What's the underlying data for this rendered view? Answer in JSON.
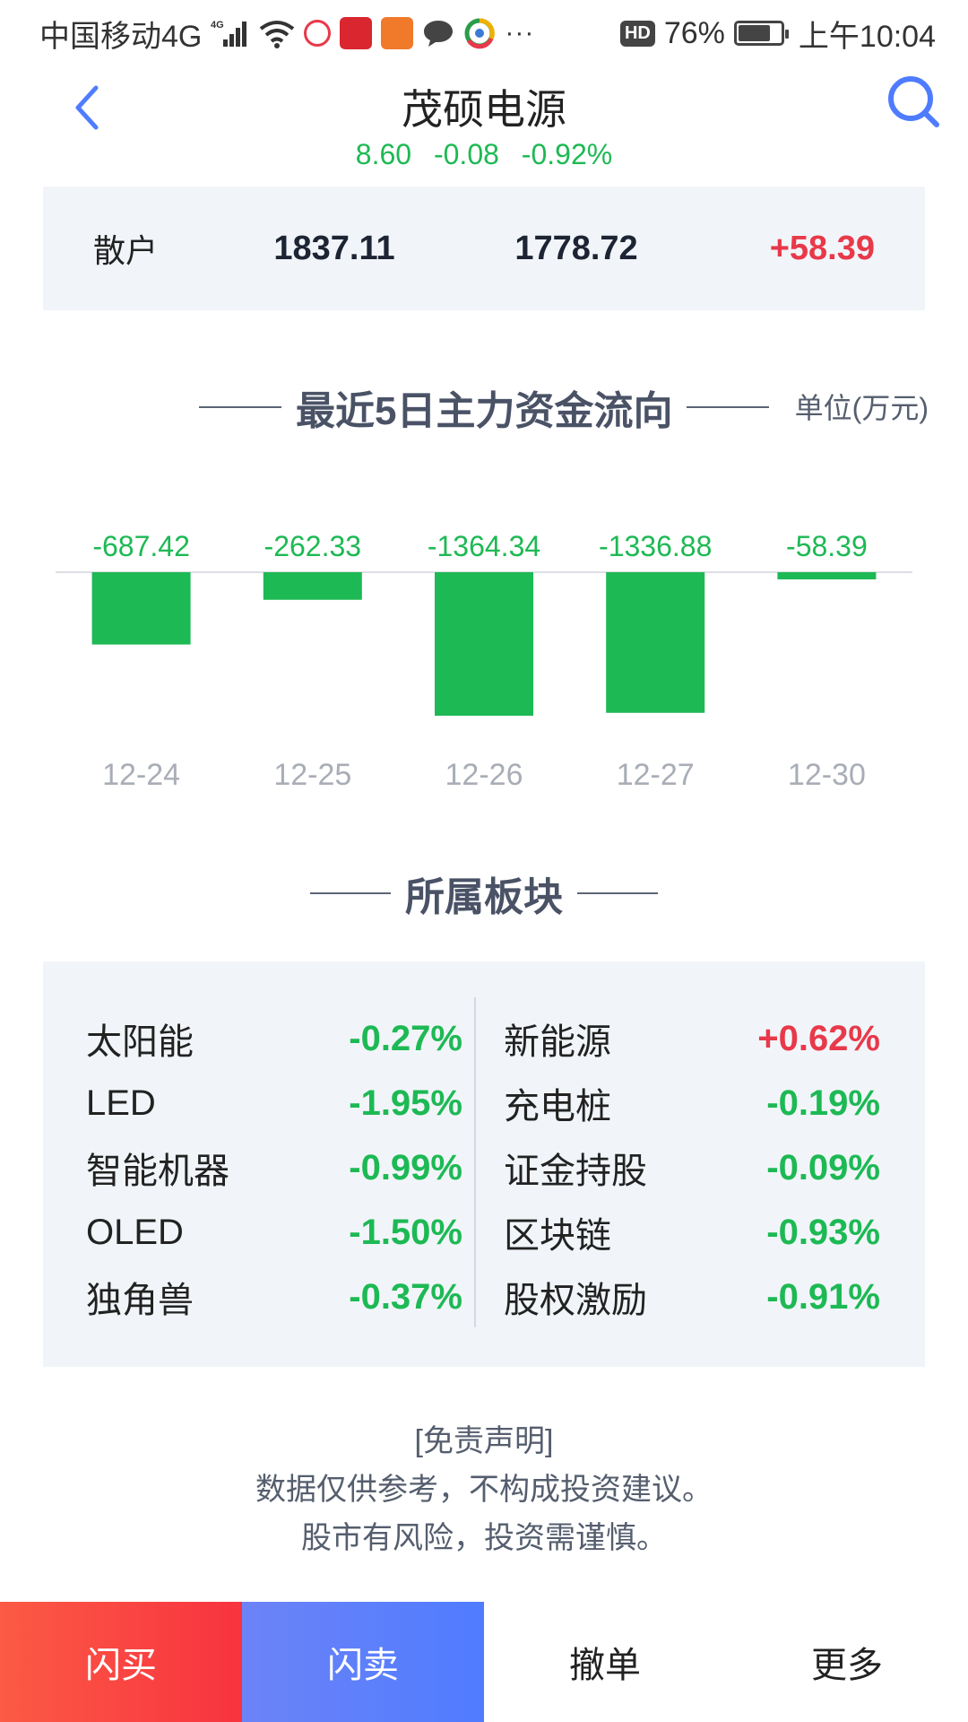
{
  "status_bar": {
    "carrier": "中国移动4G",
    "network_badge": "4G",
    "icons": [
      "signal-icon",
      "wifi-icon",
      "app-icon-1",
      "app-icon-2",
      "app-icon-3",
      "chat-icon",
      "browser-icon",
      "more-icon"
    ],
    "more": "···",
    "hd": "HD",
    "battery": "76%",
    "battery_level": 0.76,
    "time": "上午10:04"
  },
  "header": {
    "title": "茂硕电源",
    "price": "8.60",
    "change": "-0.08",
    "change_pct": "-0.92%"
  },
  "retail": {
    "label": "散户",
    "inflow": "1837.11",
    "outflow": "1778.72",
    "net": "+58.39"
  },
  "fund_flow": {
    "title": "最近5日主力资金流向",
    "unit": "单位(万元)"
  },
  "chart_data": {
    "type": "bar",
    "title": "最近5日主力资金流向",
    "categories": [
      "12-24",
      "12-25",
      "12-26",
      "12-27",
      "12-30"
    ],
    "values": [
      -687.42,
      -262.33,
      -1364.34,
      -1336.88,
      -58.39
    ],
    "value_labels": [
      "-687.42",
      "-262.33",
      "-1364.34",
      "-1336.88",
      "-58.39"
    ],
    "bar_color": "#1db954",
    "label_color": "#1db954",
    "grid": false
  },
  "sectors": {
    "title": "所属板块",
    "left": [
      {
        "name": "太阳能",
        "pct": "-0.27%",
        "dir": "down"
      },
      {
        "name": "LED",
        "pct": "-1.95%",
        "dir": "down"
      },
      {
        "name": "智能机器",
        "pct": "-0.99%",
        "dir": "down"
      },
      {
        "name": "OLED",
        "pct": "-1.50%",
        "dir": "down"
      },
      {
        "name": "独角兽",
        "pct": "-0.37%",
        "dir": "down"
      }
    ],
    "right": [
      {
        "name": "新能源",
        "pct": "+0.62%",
        "dir": "up"
      },
      {
        "name": "充电桩",
        "pct": "-0.19%",
        "dir": "down"
      },
      {
        "name": "证金持股",
        "pct": "-0.09%",
        "dir": "down"
      },
      {
        "name": "区块链",
        "pct": "-0.93%",
        "dir": "down"
      },
      {
        "name": "股权激励",
        "pct": "-0.91%",
        "dir": "down"
      }
    ]
  },
  "disclaimer": {
    "title": "[免责声明]",
    "line1": "数据仅供参考，不构成投资建议。",
    "line2": "股市有风险，投资需谨慎。"
  },
  "bottom_bar": {
    "buy": "闪买",
    "sell": "闪卖",
    "cancel": "撤单",
    "more": "更多"
  },
  "colors": {
    "down": "#1db954",
    "up": "#e8394a",
    "accent": "#4f7cff"
  }
}
